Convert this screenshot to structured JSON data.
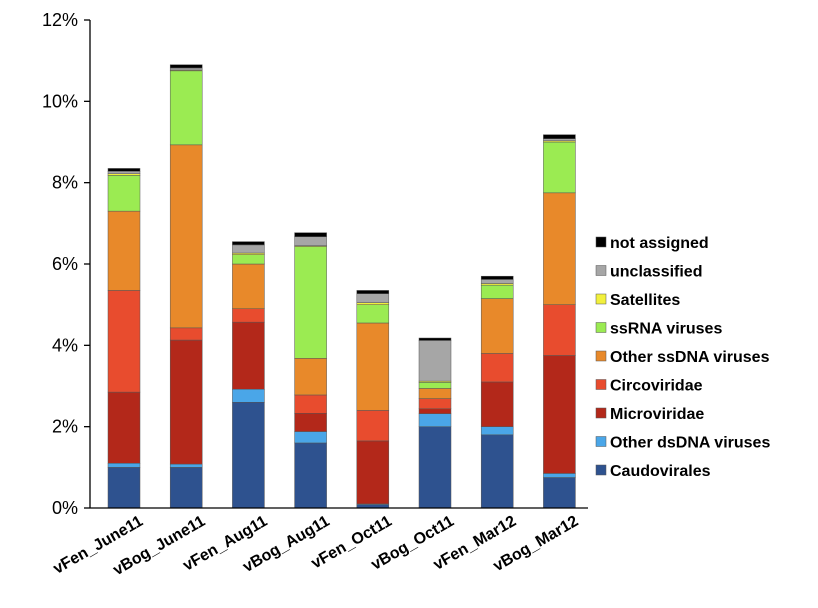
{
  "chart_data": {
    "type": "bar",
    "stacked": true,
    "title": "",
    "xlabel": "",
    "ylabel": "",
    "ylim": [
      0,
      12
    ],
    "y_ticks": [
      0,
      2,
      4,
      6,
      8,
      10,
      12
    ],
    "y_tick_labels": [
      "0%",
      "2%",
      "4%",
      "6%",
      "8%",
      "10%",
      "12%"
    ],
    "grid": false,
    "legend_position": "right",
    "categories": [
      "vFen_June11",
      "vBog_June11",
      "vFen_Aug11",
      "vBog_Aug11",
      "vFen_Oct11",
      "vBog_Oct11",
      "vFen_Mar12",
      "vBog_Mar12"
    ],
    "series": [
      {
        "name": "Caudovirales",
        "color": "#2E528F",
        "values": [
          1.0,
          1.0,
          2.6,
          1.6,
          0.08,
          2.0,
          1.8,
          0.75
        ]
      },
      {
        "name": "Other dsDNA viruses",
        "color": "#4AA6E8",
        "values": [
          0.1,
          0.08,
          0.32,
          0.28,
          0.02,
          0.32,
          0.2,
          0.1
        ]
      },
      {
        "name": "Microviridae",
        "color": "#B3281A",
        "values": [
          1.75,
          3.05,
          1.65,
          0.45,
          1.55,
          0.12,
          1.1,
          2.9
        ]
      },
      {
        "name": "Circoviridae",
        "color": "#E84C2E",
        "values": [
          2.5,
          0.3,
          0.33,
          0.45,
          0.75,
          0.25,
          0.7,
          1.25
        ]
      },
      {
        "name": "Other ssDNA viruses",
        "color": "#E8892A",
        "values": [
          1.95,
          4.5,
          1.1,
          0.9,
          2.15,
          0.25,
          1.35,
          2.75
        ]
      },
      {
        "name": "ssRNA viruses",
        "color": "#9BEB52",
        "values": [
          0.88,
          1.82,
          0.23,
          2.75,
          0.45,
          0.15,
          0.33,
          1.25
        ]
      },
      {
        "name": "Satellites",
        "color": "#F2F03C",
        "values": [
          0.04,
          0.02,
          0.04,
          0.02,
          0.05,
          0.03,
          0.04,
          0.03
        ]
      },
      {
        "name": "unclassified",
        "color": "#A6A6A6",
        "values": [
          0.06,
          0.05,
          0.2,
          0.22,
          0.22,
          1.0,
          0.1,
          0.05
        ]
      },
      {
        "name": "not assigned",
        "color": "#000000",
        "values": [
          0.07,
          0.08,
          0.08,
          0.1,
          0.08,
          0.06,
          0.08,
          0.1
        ]
      }
    ]
  }
}
